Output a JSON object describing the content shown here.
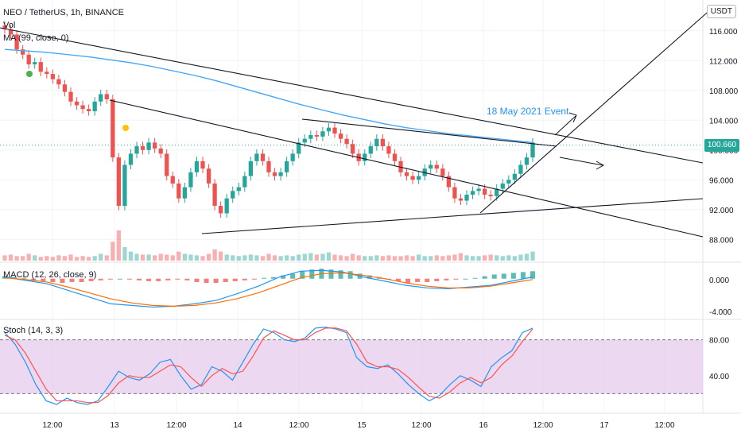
{
  "header": {
    "title": "NEO / TetherUS, 1h, BINANCE",
    "vol_label": "Vol",
    "ma_label": "MA (99, close, 0)",
    "currency_button": "USDT",
    "last_price_tag": "100.660"
  },
  "annotation": {
    "event_label": "18 May 2021 Event"
  },
  "colors": {
    "up": "#26a69a",
    "down": "#ef5350",
    "ma": "#42a5f5",
    "trend": "#131722",
    "event": "#2196f3",
    "stoch_band": "#e1bee7",
    "macd_line": "#2196f3",
    "signal_line": "#ff6d00",
    "stoch_k": "#2196f3",
    "stoch_d": "#ff5252"
  },
  "chart_data": [
    {
      "type": "candlestick",
      "title": "NEO / TetherUS, 1h, BINANCE",
      "ylabel": "USDT",
      "ylim": [
        86,
        118
      ],
      "y_ticks": [
        "116.000",
        "112.000",
        "108.000",
        "104.000",
        "100.000",
        "96.000",
        "92.000",
        "88.000"
      ],
      "x_ticks": [
        "12:00",
        "13",
        "12:00",
        "14",
        "12:00",
        "15",
        "12:00",
        "16",
        "12:00",
        "17",
        "12:00"
      ],
      "last_price": 100.66,
      "close_values": [
        116.2,
        115.5,
        113.5,
        112.8,
        111.5,
        111.8,
        110.5,
        110.2,
        109.5,
        108.8,
        107.8,
        106.5,
        106,
        105.5,
        105.2,
        106.5,
        107.5,
        106.8,
        99,
        92.5,
        98,
        99.5,
        100.5,
        100,
        101,
        100.2,
        99.5,
        96.5,
        95.5,
        93.5,
        95,
        97,
        98.5,
        97.5,
        95.5,
        92.5,
        91.5,
        93.5,
        94.5,
        95,
        96.5,
        98.5,
        99.5,
        98.5,
        97,
        96.5,
        97,
        98.5,
        99.5,
        101,
        101.5,
        102,
        101.8,
        102.5,
        103,
        102.2,
        101.5,
        100.8,
        99.5,
        98.5,
        99.5,
        100.5,
        101.5,
        100.5,
        99.5,
        98.5,
        97,
        96.5,
        96,
        96.5,
        97.5,
        98,
        97.5,
        96.5,
        95,
        93.5,
        93.2,
        94,
        94.5,
        94.8,
        94,
        93.8,
        94.8,
        95.5,
        96,
        96.8,
        98,
        99,
        101
      ],
      "volume_values": [
        7,
        8,
        6,
        6,
        9,
        7,
        5,
        6,
        5,
        7,
        6,
        8,
        5,
        6,
        5,
        6,
        9,
        7,
        25,
        40,
        18,
        12,
        9,
        8,
        8,
        7,
        9,
        8,
        7,
        12,
        9,
        8,
        7,
        6,
        9,
        15,
        12,
        8,
        7,
        6,
        7,
        8,
        7,
        6,
        9,
        7,
        6,
        7,
        6,
        8,
        9,
        10,
        8,
        9,
        11,
        8,
        7,
        6,
        9,
        7,
        6,
        6,
        7,
        6,
        7,
        6,
        6,
        7,
        6,
        8,
        6,
        6,
        7,
        6,
        7,
        8,
        10,
        7,
        6,
        6,
        7,
        8,
        7,
        6,
        7,
        6,
        8,
        9,
        12
      ],
      "series": [
        {
          "name": "MA (99, close, 0)",
          "values": [
            113.5,
            113.3,
            113.1,
            112.8,
            112.5,
            112.1,
            111.7,
            111.2,
            110.6,
            110,
            109.3,
            108.5,
            107.7,
            106.9,
            106.1,
            105.4,
            104.7,
            104.1,
            103.5,
            103,
            102.6,
            102.2,
            101.9,
            101.6,
            101.3,
            101
          ]
        }
      ]
    },
    {
      "type": "line",
      "title": "MACD (12, 26, close, 9)",
      "ylim": [
        -4.5,
        1.5
      ],
      "y_ticks": [
        "0.000",
        "-4.000"
      ],
      "series": [
        {
          "name": "MACD",
          "values": [
            0.2,
            -0.2,
            -0.6,
            -1.4,
            -2.2,
            -3,
            -3.2,
            -3.4,
            -3.3,
            -3,
            -2.6,
            -1.8,
            -0.9,
            0.2,
            0.9,
            1,
            0.8,
            0.2,
            -0.3,
            -0.8,
            -1.1,
            -1.2,
            -1,
            -0.8,
            -0.3,
            0.2
          ]
        },
        {
          "name": "Signal",
          "values": [
            0.1,
            -0.1,
            -0.4,
            -1,
            -1.7,
            -2.4,
            -2.9,
            -3.2,
            -3.3,
            -3.2,
            -2.9,
            -2.4,
            -1.7,
            -0.8,
            0.1,
            0.6,
            0.7,
            0.4,
            0,
            -0.5,
            -0.9,
            -1.1,
            -1.1,
            -0.9,
            -0.5,
            -0.1
          ]
        }
      ],
      "histogram": [
        0.3,
        0.2,
        0.1,
        -0.2,
        -0.3,
        -0.4,
        -0.5,
        -0.4,
        -0.4,
        -0.3,
        -0.2,
        -0.1,
        0,
        -0.1,
        -0.2,
        -0.3,
        -0.3,
        -0.2,
        -0.1,
        -0.2,
        -0.4,
        -0.5,
        -0.5,
        -0.4,
        -0.3,
        -0.2,
        -0.1,
        0.1,
        0.2,
        0.4,
        0.6,
        0.9,
        1.1,
        1.2,
        1.1,
        1.0,
        0.9,
        0.6,
        0.4,
        0.2,
        -0.1,
        -0.3,
        -0.5,
        -0.4,
        -0.4,
        -0.3,
        -0.2,
        -0.1,
        0,
        0.1,
        0.3,
        0.5,
        0.6,
        0.7,
        0.8,
        0.9
      ]
    },
    {
      "type": "line",
      "title": "Stoch (14, 3, 3)",
      "ylim": [
        0,
        100
      ],
      "y_ticks": [
        "80.00",
        "40.00"
      ],
      "bands": [
        20,
        80
      ],
      "series": [
        {
          "name": "%K",
          "values": [
            88,
            75,
            55,
            30,
            12,
            8,
            15,
            10,
            8,
            12,
            28,
            45,
            38,
            35,
            42,
            55,
            58,
            40,
            25,
            30,
            50,
            45,
            35,
            55,
            75,
            92,
            88,
            80,
            78,
            82,
            93,
            94,
            92,
            88,
            60,
            50,
            48,
            52,
            42,
            30,
            20,
            12,
            18,
            30,
            40,
            35,
            28,
            50,
            60,
            68,
            88,
            93
          ]
        },
        {
          "name": "%D",
          "values": [
            85,
            80,
            65,
            45,
            25,
            12,
            12,
            12,
            10,
            10,
            18,
            32,
            40,
            38,
            38,
            45,
            52,
            50,
            38,
            28,
            40,
            48,
            42,
            45,
            62,
            82,
            90,
            85,
            80,
            80,
            88,
            93,
            93,
            90,
            75,
            55,
            50,
            50,
            47,
            38,
            27,
            17,
            15,
            22,
            32,
            38,
            32,
            38,
            52,
            62,
            78,
            92
          ]
        }
      ]
    }
  ]
}
